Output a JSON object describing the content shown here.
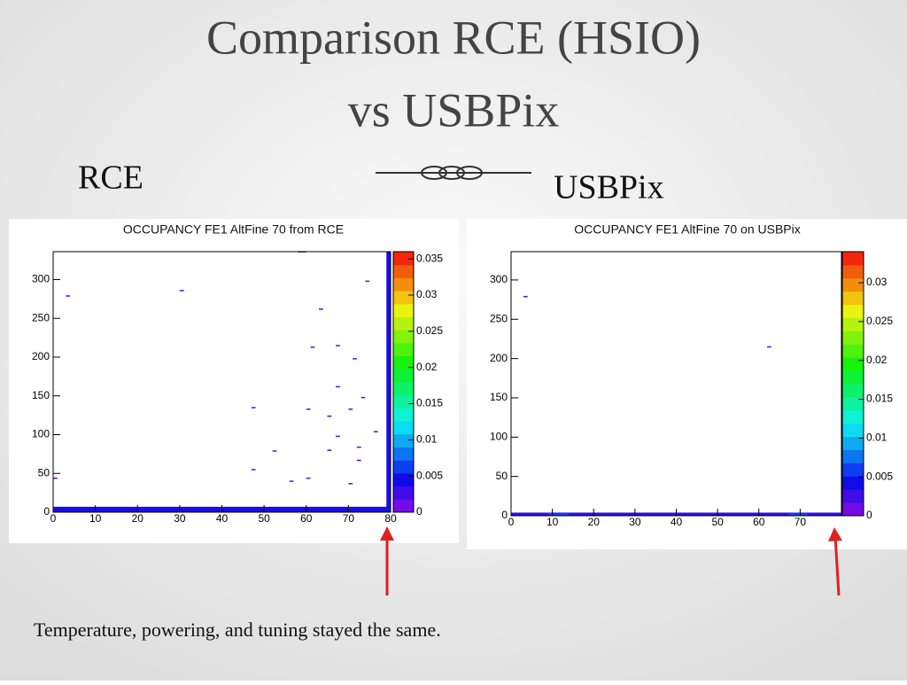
{
  "slide": {
    "title": [
      "Comparison RCE (HSIO)",
      "vs USBPix"
    ],
    "left_label": "RCE",
    "right_label": "USBPix",
    "footer": "Temperature, powering, and tuning stayed the same."
  },
  "chart_data": [
    {
      "type": "heatmap",
      "title": "OCCUPANCY FE1 AltFine 70 from RCE",
      "xlim": [
        0,
        80
      ],
      "xticks": [
        0,
        10,
        20,
        30,
        40,
        50,
        60,
        70,
        80
      ],
      "ylim": [
        0,
        336
      ],
      "yticks": [
        0,
        50,
        100,
        150,
        200,
        250,
        300
      ],
      "zlim": [
        0,
        0.036
      ],
      "zticks": [
        0,
        0.005,
        0.01,
        0.015,
        0.02,
        0.025,
        0.03,
        0.035
      ],
      "cells": [
        {
          "x": [
            0,
            80
          ],
          "y": [
            0,
            7
          ],
          "z": 0.004
        },
        {
          "x": [
            79,
            80
          ],
          "y": [
            0,
            336
          ],
          "z": 0.004
        },
        {
          "x": [
            3,
            4
          ],
          "y": [
            278,
            279
          ],
          "z": 0.002
        },
        {
          "x": [
            30,
            31
          ],
          "y": [
            285,
            286
          ],
          "z": 0.002
        },
        {
          "x": [
            74,
            75
          ],
          "y": [
            297,
            298
          ],
          "z": 0.002
        },
        {
          "x": [
            63,
            64
          ],
          "y": [
            261,
            262
          ],
          "z": 0.002
        },
        {
          "x": [
            61,
            62
          ],
          "y": [
            212,
            213
          ],
          "z": 0.002
        },
        {
          "x": [
            67,
            68
          ],
          "y": [
            214,
            215
          ],
          "z": 0.002
        },
        {
          "x": [
            71,
            72
          ],
          "y": [
            197,
            198
          ],
          "z": 0.002
        },
        {
          "x": [
            67,
            68
          ],
          "y": [
            161,
            162
          ],
          "z": 0.002
        },
        {
          "x": [
            73,
            74
          ],
          "y": [
            147,
            148
          ],
          "z": 0.002
        },
        {
          "x": [
            60,
            61
          ],
          "y": [
            132,
            133
          ],
          "z": 0.002
        },
        {
          "x": [
            65,
            66
          ],
          "y": [
            123,
            124
          ],
          "z": 0.002
        },
        {
          "x": [
            70,
            71
          ],
          "y": [
            132,
            133
          ],
          "z": 0.002
        },
        {
          "x": [
            67,
            68
          ],
          "y": [
            97,
            98
          ],
          "z": 0.002
        },
        {
          "x": [
            76,
            77
          ],
          "y": [
            103,
            104
          ],
          "z": 0.002
        },
        {
          "x": [
            72,
            73
          ],
          "y": [
            83,
            84
          ],
          "z": 0.002
        },
        {
          "x": [
            65,
            66
          ],
          "y": [
            79,
            80
          ],
          "z": 0.002
        },
        {
          "x": [
            72,
            73
          ],
          "y": [
            66,
            67
          ],
          "z": 0.002
        },
        {
          "x": [
            47,
            48
          ],
          "y": [
            54,
            55
          ],
          "z": 0.002
        },
        {
          "x": [
            56,
            57
          ],
          "y": [
            39,
            40
          ],
          "z": 0.002
        },
        {
          "x": [
            60,
            61
          ],
          "y": [
            43,
            44
          ],
          "z": 0.002
        },
        {
          "x": [
            70,
            71
          ],
          "y": [
            36,
            37
          ],
          "z": 0.002
        },
        {
          "x": [
            0,
            1
          ],
          "y": [
            43,
            44
          ],
          "z": 0.002
        },
        {
          "x": [
            47,
            48
          ],
          "y": [
            134,
            135
          ],
          "z": 0.002
        },
        {
          "x": [
            52,
            53
          ],
          "y": [
            78,
            79
          ],
          "z": 0.002
        },
        {
          "x": [
            58,
            60
          ],
          "y": [
            335,
            336
          ],
          "z": 0.002
        }
      ]
    },
    {
      "type": "heatmap",
      "title": "OCCUPANCY FE1 AltFine 70 on USBPix",
      "xlim": [
        0,
        80
      ],
      "xticks": [
        0,
        10,
        20,
        30,
        40,
        50,
        60,
        70
      ],
      "ylim": [
        0,
        336
      ],
      "yticks": [
        0,
        50,
        100,
        150,
        200,
        250,
        300
      ],
      "zlim": [
        0,
        0.034
      ],
      "zticks": [
        0,
        0.005,
        0.01,
        0.015,
        0.02,
        0.025,
        0.03
      ],
      "cells": [
        {
          "x": [
            0,
            80
          ],
          "y": [
            0,
            4
          ],
          "z": 0.003
        },
        {
          "x": [
            9,
            14
          ],
          "y": [
            0,
            3
          ],
          "z": 0.006
        },
        {
          "x": [
            67,
            72
          ],
          "y": [
            0,
            3
          ],
          "z": 0.006
        },
        {
          "x": [
            3,
            4
          ],
          "y": [
            278,
            279
          ],
          "z": 0.002
        },
        {
          "x": [
            62,
            63
          ],
          "y": [
            214,
            215
          ],
          "z": 0.002
        }
      ]
    }
  ]
}
